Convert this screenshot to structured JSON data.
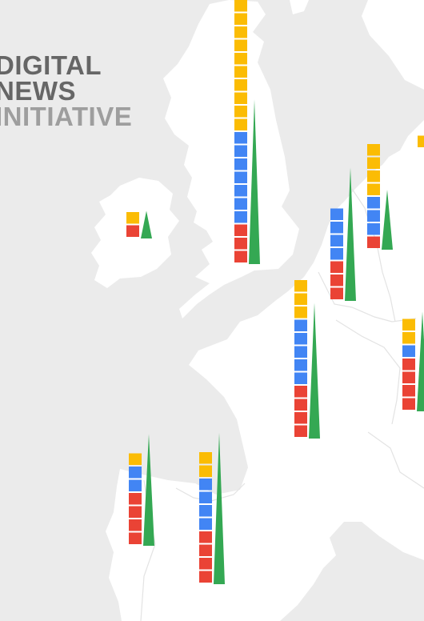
{
  "title": {
    "line1": "DIGITAL",
    "line2": "NEWS",
    "line3": "INITIATIVE"
  },
  "colors": {
    "sea": "#ebebeb",
    "land": "#ffffff",
    "yellow": "#fbbc04",
    "blue": "#4285f4",
    "red": "#ea4335",
    "green": "#34a853"
  },
  "markers": [
    {
      "name": "ireland",
      "yellow": 1,
      "blue": 0,
      "red": 1,
      "spike": 0.23
    },
    {
      "name": "united-kingdom",
      "yellow": 10,
      "blue": 7,
      "red": 3,
      "spike": 1.37
    },
    {
      "name": "belgium-netherlands",
      "yellow": 0,
      "blue": 4,
      "red": 3,
      "spike": 1.11
    },
    {
      "name": "germany-north",
      "yellow": 4,
      "blue": 3,
      "red": 1,
      "spike": 0.5
    },
    {
      "name": "france",
      "yellow": 3,
      "blue": 5,
      "red": 4,
      "spike": 1.13
    },
    {
      "name": "germany-south",
      "yellow": 2,
      "blue": 1,
      "red": 4,
      "spike": 0.83
    },
    {
      "name": "portugal",
      "yellow": 1,
      "blue": 2,
      "red": 4,
      "spike": 0.93
    },
    {
      "name": "spain",
      "yellow": 2,
      "blue": 4,
      "red": 4,
      "spike": 1.26
    },
    {
      "name": "scandinavia-edge",
      "yellow": 1,
      "blue": 0,
      "red": 0,
      "spike": 0
    }
  ]
}
